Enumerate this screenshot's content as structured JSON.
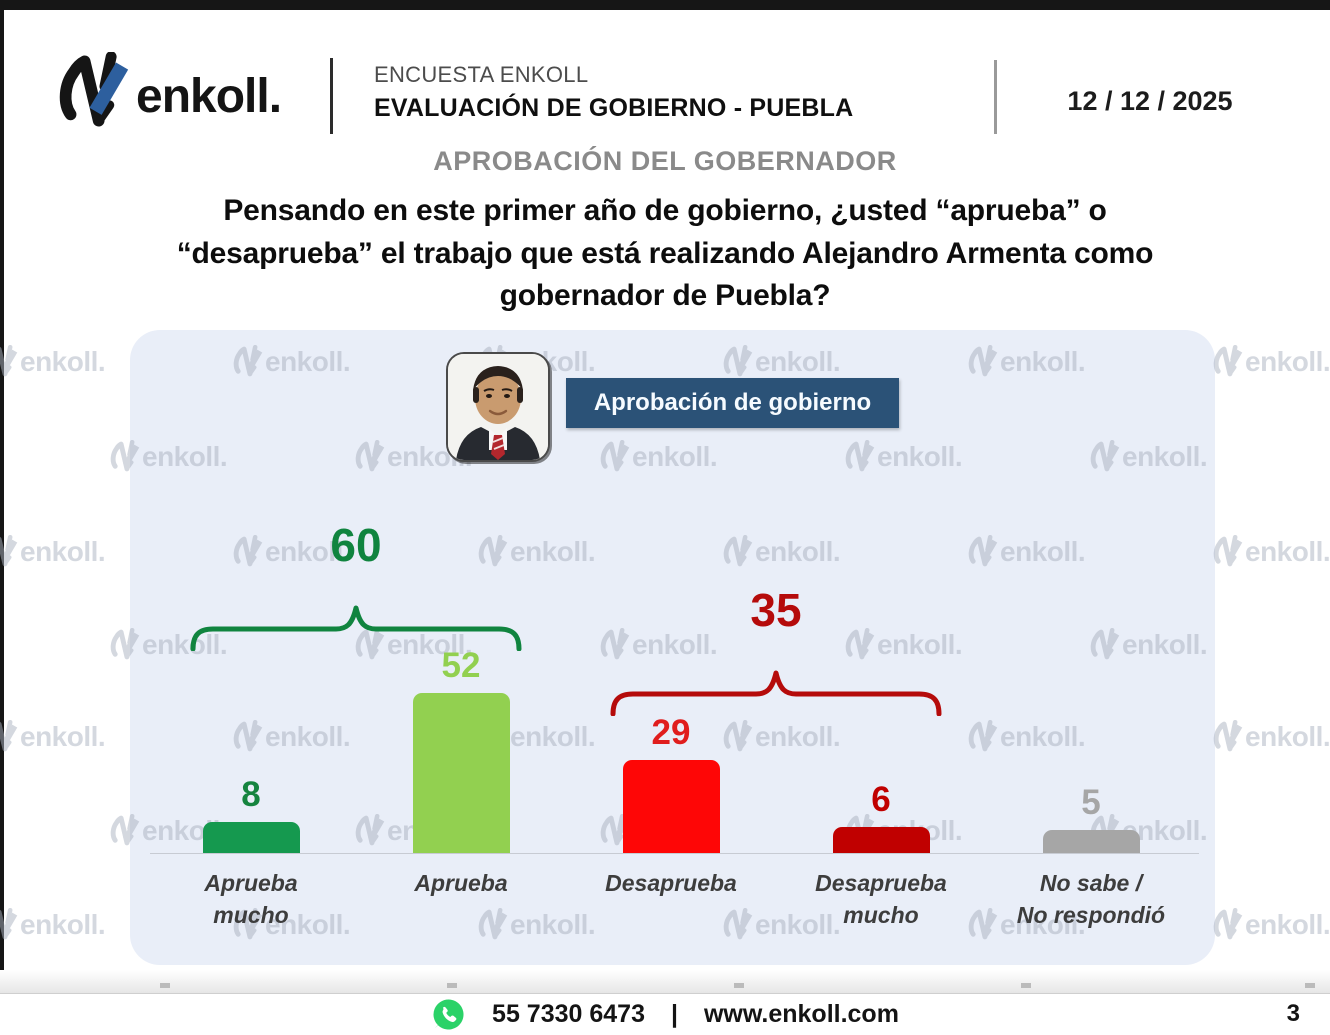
{
  "header": {
    "brand": "enkoll.",
    "survey_label": "ENCUESTA ENKOLL",
    "survey_title": "EVALUACIÓN DE GOBIERNO - PUEBLA",
    "date": "12 / 12 / 2025"
  },
  "section_title": "APROBACIÓN DEL GOBERNADOR",
  "question": "Pensando en este primer año de gobierno, ¿usted “aprueba” o\n“desaprueba” el trabajo que está realizando Alejandro Armenta como\ngobernador de Puebla?",
  "watermark": "enkoll.",
  "chart_header": {
    "badge_label": "Aprobación de gobierno"
  },
  "chart_data": {
    "type": "bar",
    "title": "Aprobación de gobierno",
    "categories": [
      "Aprueba\nmucho",
      "Aprueba",
      "Desaprueba",
      "Desaprueba\nmucho",
      "No sabe /\nNo respondió"
    ],
    "values": [
      8,
      52,
      29,
      6,
      5
    ],
    "bar_colors": [
      "#15994f",
      "#92d050",
      "#fe0606",
      "#c00000",
      "#a6a6a6"
    ],
    "value_label_colors": [
      "#15843f",
      "#92d050",
      "#e01d1d",
      "#c00000",
      "#a6a6a6"
    ],
    "groups": [
      {
        "label": "60",
        "value": 60,
        "from": 0,
        "to": 1,
        "color": "#10843f"
      },
      {
        "label": "35",
        "value": 35,
        "from": 2,
        "to": 3,
        "color": "#b50b0b"
      }
    ],
    "xlabel": "",
    "ylabel": "",
    "ylim": [
      0,
      60
    ],
    "grid": false,
    "legend": "none"
  },
  "footer": {
    "phone": "55 7330 6473",
    "separator": "|",
    "website": "www.enkoll.com",
    "page_number": "3"
  },
  "colors": {
    "panel_bg": "#e9eef8",
    "badge_bg": "#2b5277",
    "brand_blue": "#2d5f9e",
    "whatsapp_green": "#2BD268"
  }
}
